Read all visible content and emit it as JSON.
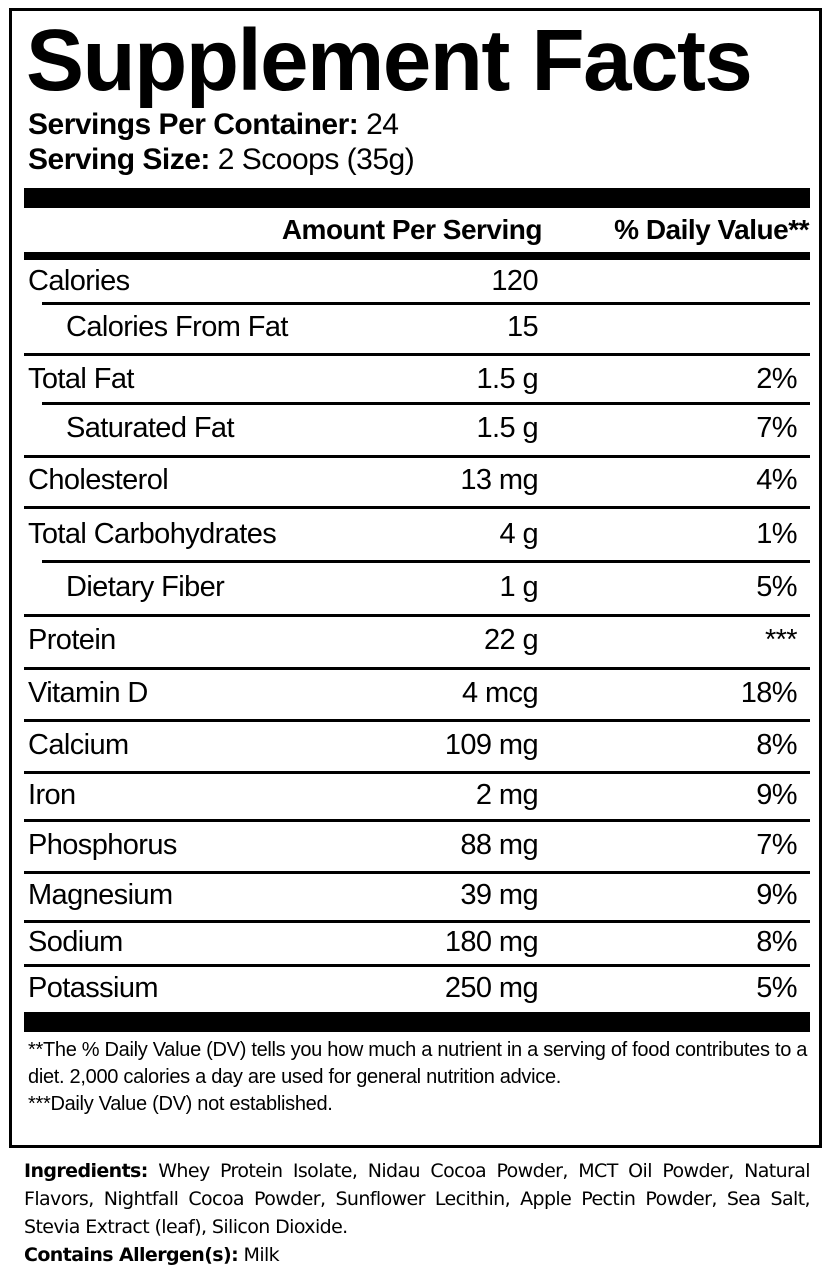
{
  "title": "Supplement Facts",
  "servings_per_container": {
    "label": "Servings Per Container:",
    "value": "24"
  },
  "serving_size": {
    "label": "Serving Size:",
    "value": "2 Scoops (35g)"
  },
  "columns": {
    "amount": "Amount Per Serving",
    "dv": "% Daily Value**"
  },
  "nutrients": [
    {
      "name": "Calories",
      "amount": "120",
      "dv": "",
      "sub": false
    },
    {
      "name": "Calories From Fat",
      "amount": "15",
      "dv": "",
      "sub": true
    },
    {
      "name": "Total Fat",
      "amount": "1.5 g",
      "dv": "2%",
      "sub": false
    },
    {
      "name": "Saturated Fat",
      "amount": "1.5 g",
      "dv": "7%",
      "sub": true
    },
    {
      "name": "Cholesterol",
      "amount": "13 mg",
      "dv": "4%",
      "sub": false
    },
    {
      "name": "Total Carbohydrates",
      "amount": "4 g",
      "dv": "1%",
      "sub": false
    },
    {
      "name": "Dietary Fiber",
      "amount": "1 g",
      "dv": "5%",
      "sub": true
    },
    {
      "name": "Protein",
      "amount": "22 g",
      "dv": "***",
      "sub": false
    },
    {
      "name": "Vitamin D",
      "amount": "4 mcg",
      "dv": "18%",
      "sub": false
    },
    {
      "name": "Calcium",
      "amount": "109 mg",
      "dv": "8%",
      "sub": false
    },
    {
      "name": "Iron",
      "amount": "2 mg",
      "dv": "9%",
      "sub": false
    },
    {
      "name": "Phosphorus",
      "amount": "88 mg",
      "dv": "7%",
      "sub": false
    },
    {
      "name": "Magnesium",
      "amount": "39 mg",
      "dv": "9%",
      "sub": false
    },
    {
      "name": "Sodium",
      "amount": "180 mg",
      "dv": "8%",
      "sub": false
    },
    {
      "name": "Potassium",
      "amount": "250 mg",
      "dv": "5%",
      "sub": false
    }
  ],
  "footnotes": [
    "**The % Daily Value (DV) tells you how much a nutrient in a serving of food contributes to a diet. 2,000 calories a day are used for general nutrition advice.",
    "***Daily Value (DV) not established."
  ],
  "ingredients": {
    "label": "Ingredients:",
    "text": "Whey Protein Isolate, Nidau Cocoa Powder, MCT Oil Powder, Natural Flavors, Nightfall Cocoa Powder, Sunflower Lecithin, Apple Pectin Powder, Sea Salt, Stevia Extract (leaf), Silicon Dioxide."
  },
  "allergens": {
    "label": "Contains Allergen(s):",
    "text": "Milk"
  }
}
